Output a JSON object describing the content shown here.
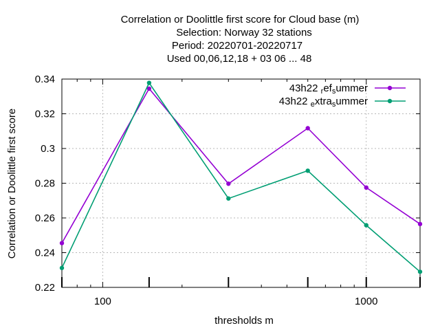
{
  "chart_data": {
    "type": "line",
    "title_lines": [
      "Correlation or Doolittle first score  for Cloud base (m)",
      "Selection: Norway     32 stations",
      "Period: 20220701-20220717",
      "Used  00,06,12,18  + 03 06 ... 48"
    ],
    "xlabel": "thresholds m",
    "ylabel": "Correlation or Doolittle first score",
    "x_scale": "log",
    "xlim": [
      70,
      1600
    ],
    "ylim": [
      0.22,
      0.34
    ],
    "x_ticks": [
      {
        "value": 100,
        "label": "100"
      },
      {
        "value": 1000,
        "label": "1000"
      }
    ],
    "y_ticks": [
      {
        "value": 0.22,
        "label": "0.22"
      },
      {
        "value": 0.24,
        "label": "0.24"
      },
      {
        "value": 0.26,
        "label": "0.26"
      },
      {
        "value": 0.28,
        "label": "0.28"
      },
      {
        "value": 0.3,
        "label": "0.3"
      },
      {
        "value": 0.32,
        "label": "0.32"
      },
      {
        "value": 0.34,
        "label": "0.34"
      }
    ],
    "x": [
      70,
      150,
      300,
      600,
      1000,
      1600
    ],
    "series": [
      {
        "name": "43h22 ref summer",
        "legend_parts": [
          "43h22 ",
          "r",
          "ef",
          "s",
          "ummer"
        ],
        "color": "#9400d3",
        "values": [
          0.2455,
          0.3345,
          0.2797,
          0.3117,
          0.2775,
          0.2565
        ]
      },
      {
        "name": "43h22 extra summer",
        "legend_parts": [
          "43h22 ",
          "e",
          "xtra",
          "s",
          "ummer"
        ],
        "color": "#009e73",
        "values": [
          0.2312,
          0.3378,
          0.2712,
          0.2872,
          0.2558,
          0.229
        ]
      }
    ],
    "grid": true,
    "legend_position": "top-right"
  }
}
